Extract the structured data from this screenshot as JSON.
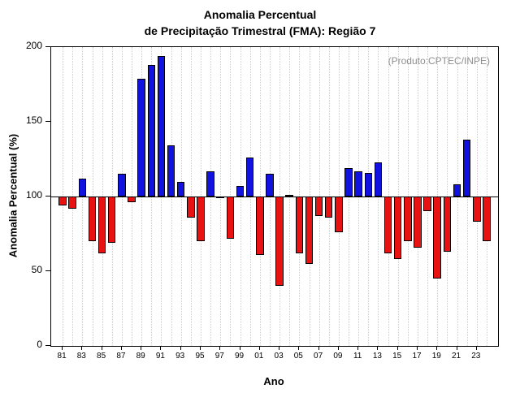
{
  "chart_data": {
    "type": "bar",
    "title_line1": "Anomalia Percentual",
    "title_line2": "de Precipitação Trimestral (FMA): Região 7",
    "ylabel": "Anomalia Percentual (%)",
    "xlabel": "Ano",
    "annotation": "(Produto:CPTEC/INPE)",
    "baseline": 100,
    "ylim": [
      0,
      200
    ],
    "yticks": [
      0,
      50,
      100,
      150,
      200
    ],
    "grid": "dotted-vertical",
    "legend": "none",
    "bar_above_color": "#1212e0",
    "bar_below_color": "#e81212",
    "bar_border_color": "#000000",
    "years": [
      1981,
      1982,
      1983,
      1984,
      1985,
      1986,
      1987,
      1988,
      1989,
      1990,
      1991,
      1992,
      1993,
      1994,
      1995,
      1996,
      1997,
      1998,
      1999,
      2000,
      2001,
      2002,
      2003,
      2004,
      2005,
      2006,
      2007,
      2008,
      2009,
      2010,
      2011,
      2012,
      2013,
      2014,
      2015,
      2016,
      2017,
      2018,
      2019,
      2020,
      2021,
      2022,
      2023,
      2024
    ],
    "xtick_labels": [
      "81",
      "",
      "83",
      "",
      "85",
      "",
      "87",
      "",
      "89",
      "",
      "91",
      "",
      "93",
      "",
      "95",
      "",
      "97",
      "",
      "99",
      "",
      "01",
      "",
      "03",
      "",
      "05",
      "",
      "07",
      "",
      "09",
      "",
      "11",
      "",
      "13",
      "",
      "15",
      "",
      "17",
      "",
      "19",
      "",
      "21",
      "",
      "23",
      ""
    ],
    "values": [
      94,
      92,
      112,
      70,
      62,
      69,
      115,
      96,
      179,
      188,
      194,
      134,
      110,
      86,
      70,
      117,
      99,
      72,
      107,
      126,
      61,
      115,
      40,
      101,
      62,
      55,
      87,
      86,
      76,
      119,
      117,
      116,
      123,
      62,
      58,
      70,
      66,
      90,
      45,
      63,
      108,
      138,
      83,
      70
    ]
  }
}
